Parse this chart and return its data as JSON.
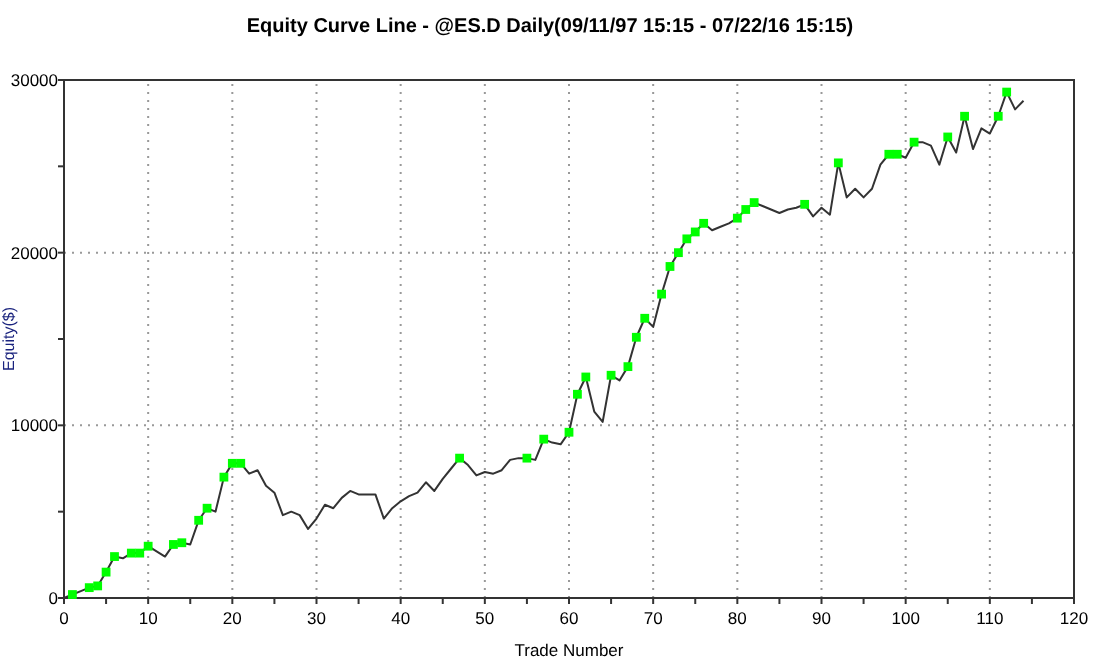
{
  "chart_data": {
    "type": "line",
    "title": "Equity Curve Line - @ES.D Daily(09/11/97 15:15 - 07/22/16 15:15)",
    "xlabel": "Trade Number",
    "ylabel": "Equity($)",
    "xlim": [
      0,
      120
    ],
    "xticks": [
      0,
      {
        "value": 5,
        "label": null
      },
      10,
      {
        "value": 15,
        "label": null
      },
      20,
      {
        "value": 25,
        "label": null
      },
      30,
      {
        "value": 35,
        "label": null
      },
      40,
      {
        "value": 45,
        "label": null
      },
      50,
      {
        "value": 55,
        "label": null
      },
      60,
      {
        "value": 65,
        "label": null
      },
      70,
      {
        "value": 75,
        "label": null
      },
      80,
      {
        "value": 85,
        "label": null
      },
      90,
      {
        "value": 95,
        "label": null
      },
      100,
      {
        "value": 105,
        "label": null
      },
      110,
      {
        "value": 115,
        "label": null
      },
      120
    ],
    "ylim": [
      0,
      30000
    ],
    "yticks": [
      0,
      {
        "value": 5000,
        "label": null
      },
      10000,
      {
        "value": 15000,
        "label": null
      },
      20000,
      {
        "value": 25000,
        "label": null
      },
      30000
    ],
    "grid": true,
    "series": [
      {
        "color": "#333333",
        "marker": "none",
        "x": [
          0,
          1,
          2,
          3,
          4,
          5,
          6,
          7,
          8,
          9,
          10,
          11,
          12,
          13,
          14,
          15,
          16,
          17,
          18,
          19,
          20,
          21,
          22,
          23,
          24,
          25,
          26,
          27,
          28,
          29,
          30,
          31,
          32,
          33,
          34,
          35,
          36,
          37,
          38,
          39,
          40,
          41,
          42,
          43,
          44,
          45,
          46,
          47,
          48,
          49,
          50,
          51,
          52,
          53,
          54,
          55,
          56,
          57,
          58,
          59,
          60,
          61,
          62,
          63,
          64,
          65,
          66,
          67,
          68,
          69,
          70,
          71,
          72,
          73,
          74,
          75,
          76,
          77,
          78,
          79,
          80,
          81,
          82,
          83,
          84,
          85,
          86,
          87,
          88,
          89,
          90,
          91,
          92,
          93,
          94,
          95,
          96,
          97,
          98,
          99,
          100,
          101,
          102,
          103,
          104,
          105,
          106,
          107,
          108,
          109,
          110,
          111,
          112,
          113,
          114
        ],
        "values": [
          0,
          200,
          400,
          600,
          700,
          1500,
          2400,
          2300,
          2600,
          2600,
          3000,
          2700,
          2400,
          3100,
          3200,
          3100,
          4500,
          5200,
          5000,
          7000,
          7800,
          7800,
          7200,
          7400,
          6500,
          6100,
          4800,
          5000,
          4800,
          4000,
          4600,
          5400,
          5200,
          5800,
          6200,
          6000,
          6000,
          6000,
          4600,
          5200,
          5600,
          5900,
          6100,
          6700,
          6200,
          6900,
          7500,
          8100,
          7700,
          7100,
          7300,
          7200,
          7400,
          8000,
          8100,
          8100,
          8000,
          9200,
          9000,
          8900,
          9600,
          11800,
          12800,
          10800,
          10200,
          12900,
          12600,
          13400,
          15100,
          16200,
          15700,
          17600,
          19200,
          20000,
          20800,
          21200,
          21700,
          21300,
          21500,
          21700,
          22000,
          22500,
          22900,
          22700,
          22500,
          22300,
          22500,
          22600,
          22800,
          22100,
          22600,
          22200,
          25200,
          23200,
          23700,
          23200,
          23700,
          25100,
          25700,
          25700,
          25500,
          26400,
          26400,
          26200,
          25100,
          26700,
          25800,
          27900,
          26000,
          27200,
          26900,
          27900,
          29300,
          28300,
          28800
        ]
      },
      {
        "type": "scatter",
        "color": "#00ff00",
        "marker": "square",
        "x": [
          1,
          3,
          4,
          5,
          6,
          8,
          9,
          10,
          13,
          14,
          16,
          17,
          19,
          20,
          21,
          47,
          55,
          57,
          60,
          61,
          62,
          65,
          67,
          68,
          69,
          71,
          72,
          73,
          74,
          75,
          76,
          80,
          81,
          82,
          88,
          92,
          98,
          99,
          101,
          105,
          107,
          111,
          112
        ],
        "values": [
          200,
          600,
          700,
          1500,
          2400,
          2600,
          2600,
          3000,
          3100,
          3200,
          4500,
          5200,
          7000,
          7800,
          7800,
          8100,
          8100,
          9200,
          9600,
          11800,
          12800,
          12900,
          13400,
          15100,
          16200,
          17600,
          19200,
          20000,
          20800,
          21200,
          21700,
          22000,
          22500,
          22900,
          22800,
          25200,
          25700,
          25700,
          26400,
          26700,
          27900,
          27900,
          29300
        ]
      }
    ]
  }
}
